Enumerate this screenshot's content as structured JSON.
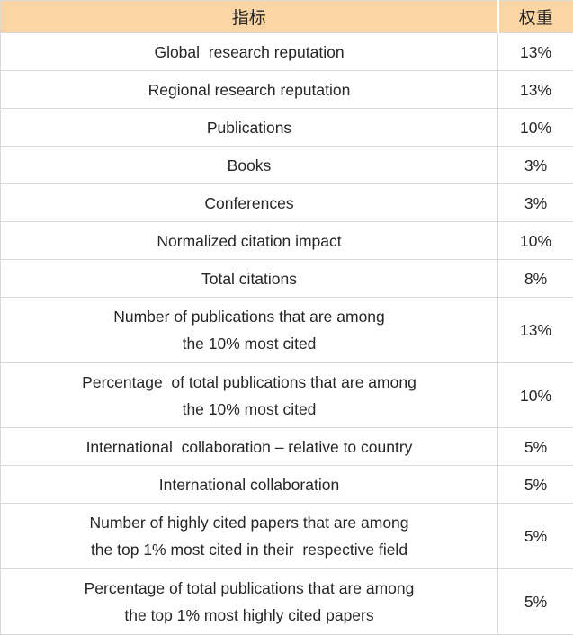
{
  "colors": {
    "header_bg": "#FBD5A3",
    "grid": "#D9D9D9",
    "text": "#262626"
  },
  "chart_data": {
    "type": "table",
    "columns": [
      "指标",
      "权重"
    ],
    "rows": [
      [
        "Global  research reputation",
        "13%"
      ],
      [
        "Regional research reputation",
        "13%"
      ],
      [
        "Publications",
        "10%"
      ],
      [
        "Books",
        "3%"
      ],
      [
        "Conferences",
        "3%"
      ],
      [
        "Normalized citation impact",
        "10%"
      ],
      [
        "Total citations",
        "8%"
      ],
      [
        "Number of publications that are among\nthe 10% most cited",
        "13%"
      ],
      [
        "Percentage  of total publications that are among\nthe 10% most cited",
        "10%"
      ],
      [
        "International  collaboration – relative to country",
        "5%"
      ],
      [
        "International collaboration",
        "5%"
      ],
      [
        "Number of highly cited papers that are among\nthe top 1% most cited in their  respective field",
        "5%"
      ],
      [
        "Percentage of total publications that are among\nthe top 1% most highly cited papers",
        "5%"
      ]
    ]
  }
}
